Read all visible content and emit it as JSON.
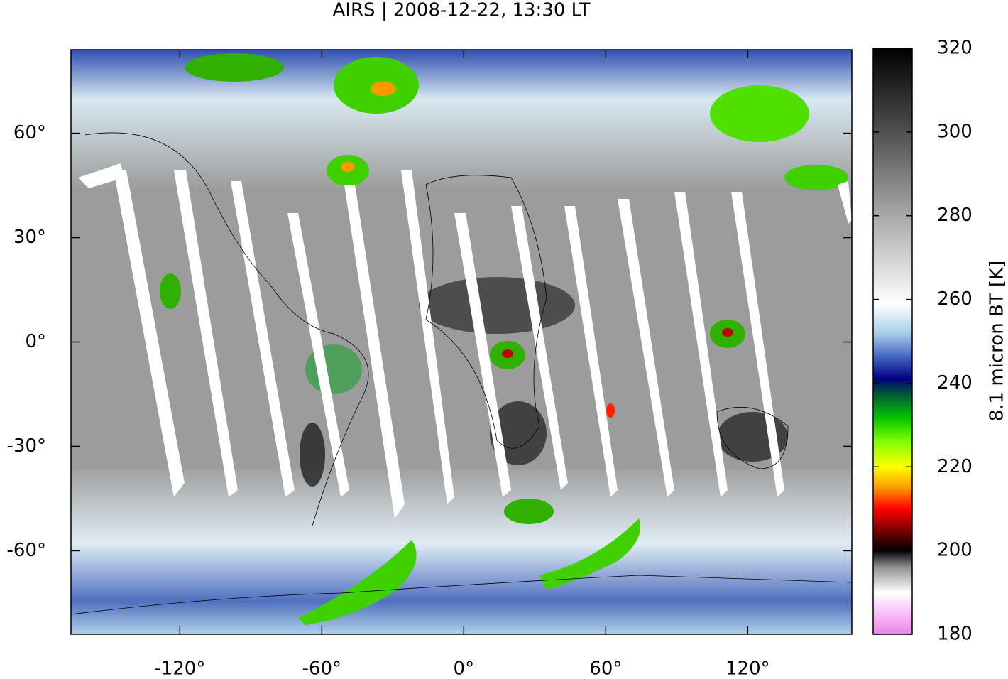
{
  "chart_data": {
    "type": "map",
    "title": "AIRS | 2008-12-22, 13:30 LT",
    "xlim": [
      -166,
      164
    ],
    "ylim": [
      -84,
      84
    ],
    "xticks": [
      {
        "value": -120,
        "label": "-120°"
      },
      {
        "value": -60,
        "label": "-60°"
      },
      {
        "value": 0,
        "label": "0°"
      },
      {
        "value": 60,
        "label": "60°"
      },
      {
        "value": 120,
        "label": "120°"
      }
    ],
    "yticks": [
      {
        "value": -60,
        "label": "-60°"
      },
      {
        "value": -30,
        "label": "-30°"
      },
      {
        "value": 0,
        "label": "0°"
      },
      {
        "value": 30,
        "label": "30°"
      },
      {
        "value": 60,
        "label": "60°"
      }
    ],
    "colorbar": {
      "label": "8.1 micron BT [K]",
      "lim": [
        180,
        320
      ],
      "ticks": [
        180,
        200,
        220,
        240,
        260,
        280,
        300,
        320
      ],
      "colormap": [
        {
          "value": 180,
          "color": "#ee82ee"
        },
        {
          "value": 190,
          "color": "#ffffff"
        },
        {
          "value": 196,
          "color": "#909090"
        },
        {
          "value": 200,
          "color": "#000000"
        },
        {
          "value": 205,
          "color": "#800000"
        },
        {
          "value": 210,
          "color": "#ff0000"
        },
        {
          "value": 215,
          "color": "#ff9900"
        },
        {
          "value": 220,
          "color": "#ffff00"
        },
        {
          "value": 226,
          "color": "#80ff00"
        },
        {
          "value": 232,
          "color": "#00c000"
        },
        {
          "value": 238,
          "color": "#004c40"
        },
        {
          "value": 241,
          "color": "#000080"
        },
        {
          "value": 246,
          "color": "#4060c0"
        },
        {
          "value": 252,
          "color": "#a8d0e8"
        },
        {
          "value": 259,
          "color": "#ffffff"
        },
        {
          "value": 262,
          "color": "#f2f2f2"
        },
        {
          "value": 280,
          "color": "#a8a8a8"
        },
        {
          "value": 300,
          "color": "#505050"
        },
        {
          "value": 320,
          "color": "#000000"
        }
      ]
    }
  }
}
